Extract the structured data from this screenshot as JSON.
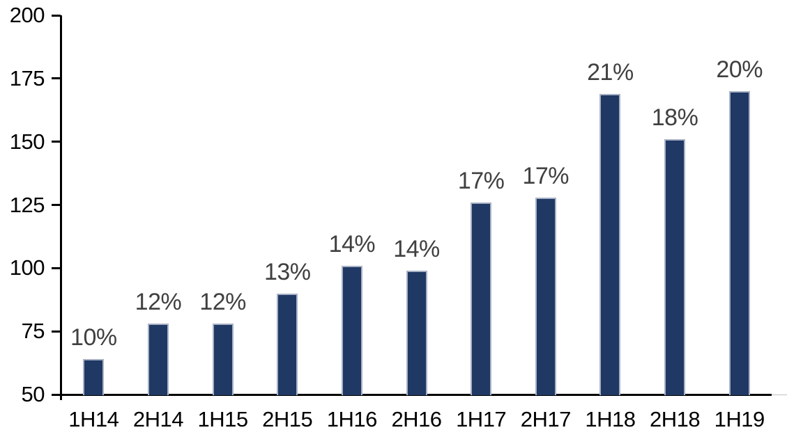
{
  "chart_data": {
    "type": "bar",
    "title": "",
    "xlabel": "",
    "ylabel": "",
    "categories": [
      "1H14",
      "2H14",
      "1H15",
      "2H15",
      "1H16",
      "2H16",
      "1H17",
      "2H17",
      "1H18",
      "2H18",
      "1H19"
    ],
    "values": [
      64,
      78,
      78,
      90,
      101,
      99,
      126,
      128,
      169,
      151,
      170
    ],
    "data_labels": [
      "10%",
      "12%",
      "12%",
      "13%",
      "14%",
      "14%",
      "17%",
      "17%",
      "21%",
      "18%",
      "20%"
    ],
    "y_ticks": [
      50,
      75,
      100,
      125,
      150,
      175,
      200
    ],
    "ylim": [
      50,
      200
    ],
    "grid": false,
    "legend_position": "none",
    "colors": {
      "bar_fill": "#1F3864",
      "bar_border": "#A9B2C4",
      "data_label": "#404040",
      "axis": "#000000",
      "axis_extension": "#BFBFBF"
    }
  }
}
